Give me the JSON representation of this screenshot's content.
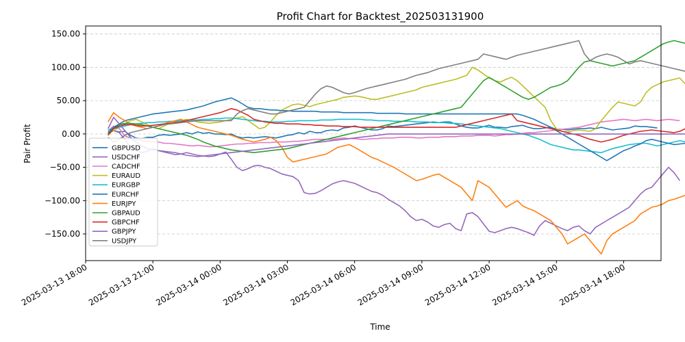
{
  "chart_data": {
    "type": "line",
    "title": "Profit Chart for Backtest_202503131900",
    "xlabel": "Time",
    "ylabel": "Pair Profit",
    "x_start": "2025-03-13 19:00",
    "x_step_minutes": 15,
    "x_ticks": [
      "2025-03-13 18:00",
      "2025-03-13 21:00",
      "2025-03-14 00:00",
      "2025-03-14 03:00",
      "2025-03-14 06:00",
      "2025-03-14 09:00",
      "2025-03-14 12:00",
      "2025-03-14 15:00",
      "2025-03-14 18:00"
    ],
    "xlim": [
      "2025-03-13 18:00",
      "2025-03-14 19:40"
    ],
    "y_ticks": [
      -150,
      -100,
      -50,
      0,
      50,
      100,
      150
    ],
    "y_tick_labels": [
      "−150.00",
      "−100.00",
      "−50.00",
      "0.00",
      "50.00",
      "100.00",
      "150.00"
    ],
    "ylim": [
      -190,
      162
    ],
    "grid": "y-dashed",
    "legend_position": "lower-left",
    "series": [
      {
        "name": "GBPUSD",
        "color": "#1f77b4",
        "values": [
          2,
          5,
          3,
          4,
          -2,
          -6,
          -7,
          -5,
          -5,
          -2,
          -1,
          -2,
          -1,
          0,
          2,
          0,
          3,
          1,
          2,
          0,
          0,
          -1,
          0,
          -4,
          -6,
          -5,
          -6,
          -5,
          -4,
          -5,
          -6,
          -4,
          -2,
          -1,
          2,
          0,
          4,
          2,
          2,
          5,
          6,
          5,
          9,
          10,
          12,
          10,
          8,
          6,
          6,
          8,
          12,
          11,
          12,
          13,
          14,
          15,
          16,
          17,
          18,
          17,
          18,
          18,
          15,
          12,
          10,
          9,
          9,
          11,
          13,
          10,
          10,
          9,
          11,
          12,
          13,
          10,
          8,
          8,
          9,
          10,
          7,
          7,
          6,
          7,
          8,
          8,
          9,
          8,
          10,
          8,
          6,
          7,
          8,
          9,
          12,
          11,
          11,
          10,
          9
        ]
      },
      {
        "name": "USDCHF",
        "color": "#9467bd",
        "values": [
          3,
          5,
          2,
          -8,
          -20,
          -25,
          -28,
          -26,
          -22,
          -25,
          -27,
          -29,
          -31,
          -30,
          -28,
          -30,
          -32,
          -33,
          -34,
          -33,
          -30,
          -27,
          -38,
          -50,
          -55,
          -52,
          -48,
          -47,
          -50,
          -52,
          -56,
          -60,
          -62,
          -64,
          -70,
          -88,
          -90,
          -89,
          -85,
          -80,
          -75,
          -72,
          -70,
          -72,
          -74,
          -78,
          -82,
          -86,
          -88,
          -92,
          -98,
          -103,
          -108,
          -115,
          -124,
          -130,
          -128,
          -132,
          -138,
          -140,
          -136,
          -134,
          -142,
          -145,
          -120,
          -118,
          -124,
          -135,
          -146,
          -148,
          -145,
          -142,
          -140,
          -142,
          -145,
          -148,
          -152,
          -138,
          -130,
          -134,
          -138,
          -142,
          -145,
          -140,
          -138,
          -145,
          -150,
          -140,
          -135,
          -130,
          -125,
          -120,
          -115,
          -110,
          -100,
          -90,
          -83,
          -80,
          -70,
          -60,
          -50,
          -58,
          -70
        ]
      },
      {
        "name": "CADCHF",
        "color": "#e377c2",
        "values": [
          5,
          12,
          8,
          -3,
          -6,
          -8,
          -10,
          -11,
          -12,
          -12,
          -14,
          -14,
          -15,
          -16,
          -17,
          -18,
          -17,
          -18,
          -19,
          -19,
          -18,
          -17,
          -16,
          -15,
          -15,
          -14,
          -14,
          -13,
          -13,
          -13,
          -12,
          -12,
          -12,
          -11,
          -11,
          -10,
          -9,
          -8,
          -8,
          -8,
          -8,
          -7,
          -6,
          -7,
          -7,
          -8,
          -8,
          -7,
          -7,
          -6,
          -6,
          -6,
          -5,
          -5,
          -5,
          -6,
          -6,
          -5,
          -5,
          -5,
          -4,
          -4,
          -4,
          -3,
          -3,
          -3,
          -2,
          -2,
          -2,
          -3,
          -2,
          -1,
          -1,
          0,
          1,
          2,
          2,
          3,
          4,
          5,
          6,
          7,
          8,
          9,
          10,
          12,
          14,
          16,
          18,
          19,
          20,
          21,
          22,
          21,
          20,
          21,
          22,
          21,
          20,
          21,
          22,
          21,
          20
        ]
      },
      {
        "name": "EURAUD",
        "color": "#bcbd22",
        "values": [
          0,
          5,
          10,
          15,
          20,
          22,
          18,
          14,
          10,
          8,
          12,
          16,
          18,
          20,
          22,
          20,
          18,
          17,
          16,
          17,
          18,
          20,
          22,
          24,
          26,
          20,
          14,
          8,
          10,
          18,
          28,
          36,
          40,
          44,
          45,
          43,
          41,
          44,
          46,
          48,
          50,
          52,
          55,
          56,
          57,
          56,
          54,
          52,
          52,
          54,
          56,
          58,
          60,
          62,
          64,
          66,
          70,
          72,
          74,
          76,
          78,
          80,
          82,
          85,
          88,
          100,
          96,
          90,
          84,
          80,
          78,
          82,
          85,
          80,
          72,
          64,
          56,
          48,
          40,
          20,
          8,
          4,
          3,
          5,
          6,
          5,
          4,
          8,
          20,
          30,
          40,
          48,
          46,
          44,
          42,
          48,
          62,
          70,
          74,
          78,
          80,
          82,
          84,
          75,
          70,
          65,
          60,
          62,
          70,
          76
        ]
      },
      {
        "name": "EURGBP",
        "color": "#17becf",
        "values": [
          6,
          8,
          10,
          12,
          14,
          15,
          16,
          17,
          17,
          18,
          18,
          19,
          19,
          20,
          20,
          21,
          21,
          22,
          22,
          23,
          23,
          24,
          24,
          23,
          22,
          21,
          20,
          19,
          19,
          18,
          18,
          18,
          19,
          19,
          20,
          20,
          20,
          20,
          21,
          21,
          21,
          22,
          22,
          22,
          22,
          22,
          21,
          21,
          20,
          20,
          20,
          19,
          19,
          19,
          19,
          18,
          18,
          18,
          17,
          17,
          17,
          16,
          16,
          15,
          14,
          13,
          12,
          11,
          10,
          9,
          8,
          6,
          4,
          2,
          0,
          -2,
          -5,
          -8,
          -12,
          -16,
          -18,
          -20,
          -22,
          -24,
          -24,
          -25,
          -26,
          -27,
          -28,
          -25,
          -22,
          -20,
          -18,
          -16,
          -15,
          -14,
          -14,
          -16,
          -18,
          -16,
          -14,
          -12,
          -10,
          -12,
          -16,
          -18,
          -20,
          -22,
          -24,
          -23
        ]
      },
      {
        "name": "EURCHF",
        "color": "#1f77b4",
        "values": [
          2,
          10,
          15,
          20,
          22,
          24,
          26,
          28,
          30,
          31,
          32,
          33,
          34,
          35,
          36,
          38,
          40,
          42,
          45,
          48,
          50,
          52,
          54,
          50,
          45,
          40,
          38,
          38,
          37,
          36,
          36,
          35,
          35,
          34,
          34,
          34,
          34,
          34,
          33,
          33,
          33,
          33,
          32,
          32,
          32,
          32,
          32,
          32,
          31,
          31,
          31,
          31,
          31,
          30,
          30,
          30,
          30,
          30,
          30,
          30,
          30,
          30,
          30,
          30,
          30,
          30,
          30,
          30,
          30,
          30,
          30,
          30,
          30,
          30,
          28,
          25,
          22,
          18,
          14,
          10,
          5,
          0,
          -5,
          -10,
          -15,
          -20,
          -25,
          -30,
          -35,
          -40,
          -35,
          -30,
          -25,
          -22,
          -18,
          -15,
          -10,
          -8,
          -10,
          -12,
          -14,
          -16,
          -15,
          -14,
          -13,
          -12,
          -11,
          -10,
          -9
        ]
      },
      {
        "name": "EURJPY",
        "color": "#ff7f0e",
        "values": [
          18,
          32,
          25,
          20,
          15,
          12,
          10,
          8,
          10,
          12,
          15,
          18,
          20,
          22,
          18,
          14,
          10,
          8,
          6,
          4,
          2,
          0,
          -2,
          -5,
          -8,
          -10,
          -12,
          -10,
          -8,
          -5,
          -10,
          -20,
          -35,
          -42,
          -40,
          -38,
          -36,
          -34,
          -32,
          -30,
          -25,
          -20,
          -18,
          -16,
          -20,
          -25,
          -30,
          -35,
          -38,
          -42,
          -46,
          -50,
          -55,
          -60,
          -65,
          -70,
          -68,
          -65,
          -62,
          -60,
          -65,
          -70,
          -75,
          -80,
          -90,
          -100,
          -70,
          -75,
          -80,
          -90,
          -100,
          -110,
          -105,
          -100,
          -108,
          -112,
          -115,
          -120,
          -125,
          -130,
          -140,
          -150,
          -165,
          -160,
          -155,
          -150,
          -160,
          -170,
          -180,
          -160,
          -150,
          -145,
          -140,
          -135,
          -130,
          -120,
          -115,
          -110,
          -108,
          -105,
          -100,
          -98,
          -95,
          -92,
          -90,
          -95,
          -100
        ]
      },
      {
        "name": "GBPAUD",
        "color": "#2ca02c",
        "values": [
          0,
          8,
          14,
          16,
          16,
          15,
          14,
          12,
          10,
          8,
          6,
          4,
          2,
          0,
          -2,
          -5,
          -8,
          -12,
          -15,
          -18,
          -20,
          -22,
          -24,
          -25,
          -26,
          -27,
          -28,
          -27,
          -26,
          -25,
          -24,
          -23,
          -22,
          -20,
          -18,
          -16,
          -14,
          -12,
          -10,
          -8,
          -6,
          -4,
          -2,
          0,
          2,
          4,
          6,
          8,
          10,
          12,
          14,
          16,
          18,
          20,
          22,
          24,
          26,
          28,
          30,
          32,
          34,
          36,
          38,
          40,
          50,
          60,
          70,
          80,
          85,
          80,
          75,
          70,
          65,
          60,
          55,
          52,
          55,
          60,
          65,
          70,
          72,
          75,
          80,
          90,
          100,
          108,
          110,
          108,
          106,
          104,
          102,
          104,
          106,
          108,
          110,
          115,
          120,
          125,
          130,
          135,
          138,
          140,
          138,
          136,
          134,
          140,
          145
        ]
      },
      {
        "name": "GBPCHF",
        "color": "#d62728",
        "values": [
          -2,
          8,
          12,
          14,
          14,
          13,
          12,
          12,
          13,
          14,
          15,
          16,
          17,
          18,
          20,
          22,
          24,
          26,
          28,
          30,
          32,
          35,
          38,
          36,
          32,
          28,
          22,
          20,
          18,
          17,
          16,
          16,
          15,
          15,
          15,
          14,
          14,
          13,
          13,
          12,
          12,
          12,
          11,
          11,
          11,
          10,
          10,
          10,
          10,
          10,
          10,
          10,
          10,
          10,
          10,
          10,
          10,
          10,
          10,
          10,
          10,
          10,
          10,
          12,
          14,
          16,
          18,
          20,
          22,
          24,
          26,
          28,
          30,
          20,
          18,
          16,
          14,
          12,
          10,
          8,
          6,
          4,
          2,
          0,
          -2,
          -5,
          -8,
          -10,
          -12,
          -10,
          -8,
          -5,
          -2,
          0,
          2,
          4,
          5,
          6,
          5,
          4,
          3,
          2,
          4,
          8,
          12,
          16,
          20,
          22,
          20,
          18
        ]
      },
      {
        "name": "GBPJPY",
        "color": "#9467bd",
        "values": [
          8,
          25,
          15,
          5,
          -5,
          -12,
          -18,
          -22,
          -24,
          -25,
          -26,
          -27,
          -28,
          -30,
          -32,
          -33,
          -34,
          -33,
          -32,
          -31,
          -30,
          -29,
          -28,
          -27,
          -26,
          -25,
          -24,
          -23,
          -22,
          -21,
          -20,
          -19,
          -18,
          -17,
          -16,
          -15,
          -14,
          -13,
          -12,
          -11,
          -10,
          -9,
          -8,
          -7,
          -6,
          -5,
          -4,
          -3,
          -2,
          -1,
          0,
          0,
          0,
          0,
          0,
          0,
          0,
          0,
          0,
          0,
          0,
          0,
          0,
          0,
          0,
          0,
          0,
          0,
          0,
          0,
          0,
          0,
          0,
          0,
          0,
          0,
          0,
          0,
          0,
          0,
          0,
          0,
          0,
          0,
          0,
          0,
          0,
          0,
          0,
          0,
          0,
          0,
          0,
          0,
          0,
          0,
          0,
          0,
          0,
          0,
          0,
          0,
          0,
          0,
          0,
          0,
          0,
          0,
          0,
          0
        ]
      },
      {
        "name": "USDJPY",
        "color": "#7f7f7f",
        "values": [
          -5,
          -12,
          -8,
          -2,
          2,
          4,
          6,
          8,
          10,
          12,
          14,
          15,
          16,
          17,
          18,
          19,
          20,
          20,
          20,
          20,
          20,
          20,
          20,
          30,
          35,
          38,
          36,
          34,
          32,
          30,
          30,
          32,
          34,
          36,
          38,
          40,
          50,
          60,
          68,
          72,
          70,
          66,
          62,
          60,
          62,
          65,
          68,
          70,
          72,
          74,
          76,
          78,
          80,
          82,
          85,
          88,
          90,
          92,
          95,
          98,
          100,
          102,
          104,
          106,
          108,
          110,
          112,
          120,
          118,
          116,
          114,
          112,
          115,
          118,
          120,
          122,
          124,
          126,
          128,
          130,
          132,
          134,
          136,
          138,
          140,
          120,
          110,
          115,
          118,
          120,
          118,
          115,
          110,
          105,
          108,
          110,
          108,
          106,
          104,
          102,
          100,
          98,
          96,
          94,
          92,
          90,
          88,
          85,
          82,
          80,
          78
        ]
      }
    ]
  }
}
